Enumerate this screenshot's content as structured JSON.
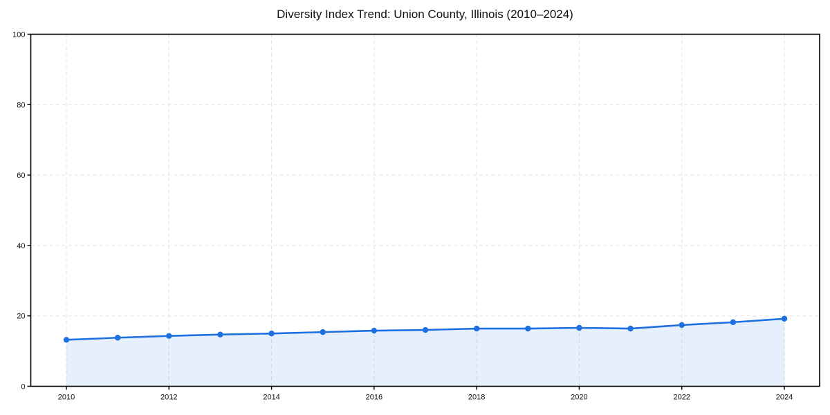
{
  "chart_data": {
    "type": "line",
    "title": "Diversity Index Trend: Union County, Illinois (2010–2024)",
    "x": [
      2010,
      2011,
      2012,
      2013,
      2014,
      2015,
      2016,
      2017,
      2018,
      2019,
      2020,
      2021,
      2022,
      2023,
      2024
    ],
    "series": [
      {
        "name": "Diversity Index",
        "values": [
          13.2,
          13.8,
          14.3,
          14.7,
          15.0,
          15.4,
          15.8,
          16.0,
          16.4,
          16.4,
          16.6,
          16.4,
          17.4,
          18.2,
          19.2
        ]
      }
    ],
    "xlabel": "",
    "ylabel": "",
    "ylim": [
      0,
      100
    ],
    "yticks": [
      0,
      20,
      40,
      60,
      80,
      100
    ],
    "xticks": [
      2010,
      2012,
      2014,
      2016,
      2018,
      2020,
      2022,
      2024
    ],
    "grid": "dashed, light gray, horizontal and vertical at ticks",
    "legend": "none",
    "area_fill": true,
    "colors": {
      "line": "#1e6fe0",
      "marker": "#1e6fe0",
      "fill": "#1e6fe0",
      "fill_opacity": 0.11,
      "gridline": "#e1e1e1",
      "spine": "#000000",
      "tick_label": "#111111",
      "title": "#111111",
      "background": "#ffffff"
    }
  }
}
